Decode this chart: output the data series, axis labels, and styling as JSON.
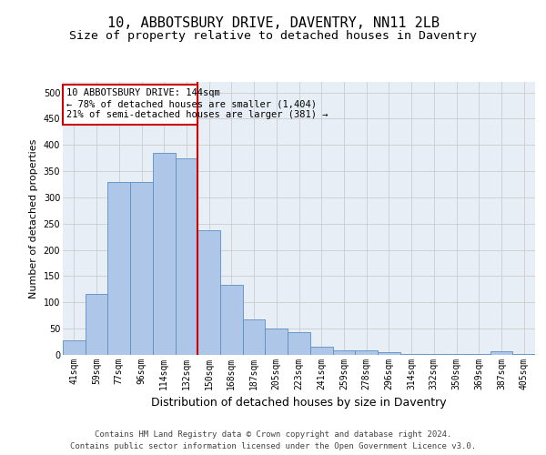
{
  "title1": "10, ABBOTSBURY DRIVE, DAVENTRY, NN11 2LB",
  "title2": "Size of property relative to detached houses in Daventry",
  "xlabel": "Distribution of detached houses by size in Daventry",
  "ylabel": "Number of detached properties",
  "categories": [
    "41sqm",
    "59sqm",
    "77sqm",
    "96sqm",
    "114sqm",
    "132sqm",
    "150sqm",
    "168sqm",
    "187sqm",
    "205sqm",
    "223sqm",
    "241sqm",
    "259sqm",
    "278sqm",
    "296sqm",
    "314sqm",
    "332sqm",
    "350sqm",
    "369sqm",
    "387sqm",
    "405sqm"
  ],
  "values": [
    27,
    116,
    330,
    330,
    385,
    375,
    238,
    133,
    68,
    50,
    43,
    16,
    9,
    9,
    5,
    2,
    2,
    2,
    1,
    7,
    2
  ],
  "bar_color": "#aec6e8",
  "bar_edge_color": "#5a8fc2",
  "grid_color": "#cccccc",
  "vline_x": 5.5,
  "vline_color": "#cc0000",
  "annotation_line1": "10 ABBOTSBURY DRIVE: 144sqm",
  "annotation_line2": "← 78% of detached houses are smaller (1,404)",
  "annotation_line3": "21% of semi-detached houses are larger (381) →",
  "annotation_box_color": "#cc0000",
  "footnote": "Contains HM Land Registry data © Crown copyright and database right 2024.\nContains public sector information licensed under the Open Government Licence v3.0.",
  "ylim": [
    0,
    520
  ],
  "background_color": "#e8eef5",
  "fig_background": "#ffffff",
  "title1_fontsize": 11,
  "title2_fontsize": 9.5,
  "xlabel_fontsize": 9,
  "ylabel_fontsize": 8,
  "tick_fontsize": 7,
  "footnote_fontsize": 6.5,
  "annotation_fontsize": 7.5
}
